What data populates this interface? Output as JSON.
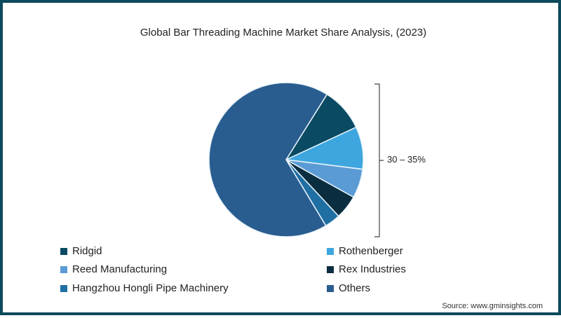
{
  "title": "Global Bar Threading Machine Market Share Analysis, (2023)",
  "bracket_label": "30 – 35%",
  "source": "Source: www.gminsights.com",
  "legend": [
    {
      "label": "Ridgid",
      "color": "#0b4a63"
    },
    {
      "label": "Rothenberger",
      "color": "#3ea6de"
    },
    {
      "label": "Reed Manufacturing",
      "color": "#5b9bd5"
    },
    {
      "label": "Rex Industries",
      "color": "#0b2d40"
    },
    {
      "label": "Hangzhou Hongli Pipe Machinery",
      "color": "#1f6fa3"
    },
    {
      "label": "Others",
      "color": "#2a5d8f"
    }
  ],
  "chart_data": {
    "type": "pie",
    "title": "Global Bar Threading Machine Market Share Analysis, (2023)",
    "categories": [
      "Ridgid",
      "Rothenberger",
      "Reed Manufacturing",
      "Rex Industries",
      "Hangzhou Hongli Pipe Machinery",
      "Others"
    ],
    "values": [
      9.2,
      8.9,
      6.1,
      5.0,
      3.3,
      67.5
    ],
    "colors": [
      "#0b4a63",
      "#3ea6de",
      "#5b9bd5",
      "#0b2d40",
      "#1f6fa3",
      "#2a5d8f"
    ],
    "annotations": [
      {
        "text": "30 – 35%",
        "spans": [
          "Ridgid",
          "Rothenberger",
          "Reed Manufacturing",
          "Rex Industries",
          "Hangzhou Hongli Pipe Machinery"
        ]
      }
    ],
    "start_angle_deg": 32,
    "legend_position": "bottom",
    "source": "Source: www.gminsights.com"
  }
}
